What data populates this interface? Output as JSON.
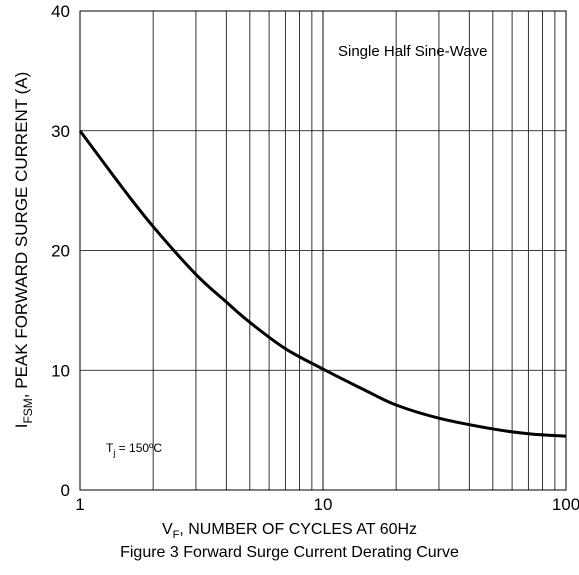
{
  "chart_data": {
    "type": "line",
    "title": "Figure 3 Forward Surge Current Derating Curve",
    "xlabel_prefix": "V",
    "xlabel_sub": "F",
    "xlabel_rest": ", NUMBER OF CYCLES AT 60Hz",
    "ylabel_prefix": "I",
    "ylabel_sub": "FSM",
    "ylabel_rest": ", PEAK FORWARD SURGE CURRENT (A)",
    "xscale": "log",
    "xlim": [
      1,
      100
    ],
    "ylim": [
      0,
      40
    ],
    "xticks": [
      "1",
      "10",
      "100"
    ],
    "yticks": [
      "0",
      "10",
      "20",
      "30",
      "40"
    ],
    "grid": true,
    "series": [
      {
        "x": [
          1,
          1.5,
          2,
          3,
          4,
          5,
          7,
          10,
          15,
          20,
          30,
          50,
          70,
          100
        ],
        "y": [
          30,
          25.2,
          22,
          18,
          15.7,
          14,
          11.8,
          10.1,
          8.3,
          7.1,
          6,
          5.1,
          4.7,
          4.5
        ]
      }
    ],
    "annotations": {
      "waveform": "Single Half Sine-Wave",
      "tj_prefix": "T",
      "tj_sub": "j",
      "tj_rest": " = 150ºC"
    },
    "line_color": "#000000"
  }
}
